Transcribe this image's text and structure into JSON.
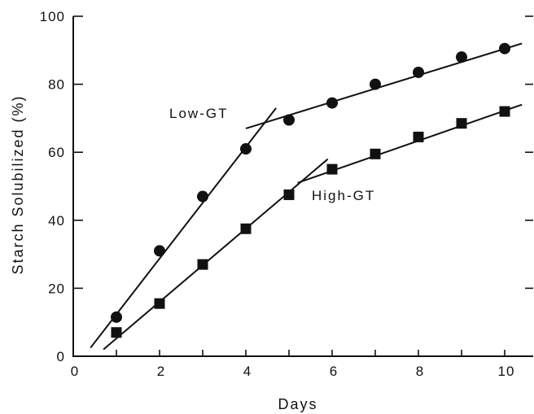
{
  "chart_data": {
    "type": "scatter",
    "title": "",
    "xlabel": "Days",
    "ylabel": "Starch Solubilized (%)",
    "xlim": [
      0,
      10.5
    ],
    "ylim": [
      0,
      100
    ],
    "x_ticks": [
      0,
      2,
      4,
      6,
      8,
      10
    ],
    "y_ticks": [
      0,
      20,
      40,
      60,
      80,
      100
    ],
    "x_tick_labels": [
      "0",
      "2",
      "4",
      "6",
      "8",
      "10"
    ],
    "y_tick_labels": [
      "0",
      "20",
      "40",
      "60",
      "80",
      "100"
    ],
    "grid": false,
    "series": [
      {
        "name": "Low-GT",
        "marker": "circle",
        "x": [
          1,
          2,
          3,
          4,
          5,
          6,
          7,
          8,
          9,
          10
        ],
        "y": [
          11.5,
          31,
          47,
          61,
          69.5,
          74.5,
          80,
          83.5,
          88,
          90.5
        ],
        "fit_lines": [
          {
            "x": [
              0.4,
              4.7
            ],
            "y": [
              2.5,
              73
            ]
          },
          {
            "x": [
              4.0,
              10.4
            ],
            "y": [
              67,
              92
            ]
          }
        ]
      },
      {
        "name": "High-GT",
        "marker": "square",
        "x": [
          1,
          2,
          3,
          4,
          5,
          6,
          7,
          8,
          9,
          10
        ],
        "y": [
          7,
          15.5,
          27,
          37.5,
          47.5,
          55,
          59.5,
          64.5,
          68.5,
          72
        ],
        "fit_lines": [
          {
            "x": [
              0.7,
              5.9
            ],
            "y": [
              2,
              58
            ]
          },
          {
            "x": [
              5.2,
              10.4
            ],
            "y": [
              51,
              74
            ]
          }
        ]
      }
    ]
  }
}
